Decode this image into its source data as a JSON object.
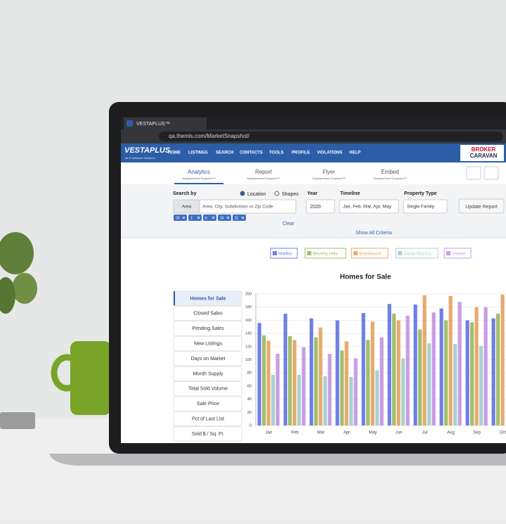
{
  "browser": {
    "tab_title": "VESTAPLUS™",
    "url": "qa.themls.com/MarketSnapshot/"
  },
  "header": {
    "logo": "VESTAPLUS",
    "logo_tagline": "MLS Software Solutions",
    "nav": [
      "HOME",
      "LISTINGS",
      "SEARCH",
      "CONTACTS",
      "TOOLS",
      "PROFILE",
      "VIOLATIONS",
      "HELP"
    ],
    "partner_logo": [
      "BROKER",
      "CARAVAN"
    ]
  },
  "tabs": [
    {
      "label": "Analytics",
      "sub": "Neighborhood Snapshot™"
    },
    {
      "label": "Report",
      "sub": "Neighborhood Snapshot™"
    },
    {
      "label": "Flyer",
      "sub": "Neighborhood Snapshot™"
    },
    {
      "label": "Embed",
      "sub": "Neighborhood Snapshot™"
    }
  ],
  "search": {
    "search_by": "Search by",
    "options": [
      "Location",
      "Shapes"
    ],
    "area_label": "Area:",
    "area_placeholder": "Area, City, Subdivision or Zip Code",
    "chips": [
      "33",
      "1",
      "6",
      "14",
      "11"
    ],
    "clear": "Clear",
    "year_label": "Year",
    "year": "2020",
    "timeline_label": "Timeline",
    "timeline": "Jan, Feb, Mar, Apr, May",
    "property_label": "Property Type",
    "property": "Single Family",
    "update": "Update Report",
    "show_all": "Show All Criteria"
  },
  "metrics": [
    "Homes for Sale",
    "Closed Sales",
    "Pending Sales",
    "New Listings",
    "Days on Market",
    "Month Supply",
    "Total Sold Volume",
    "Sale Price",
    "Pct of Last List",
    "Sold $ / Sq. Ft."
  ],
  "chart_data": {
    "type": "bar",
    "title": "Homes for Sale",
    "categories": [
      "Jan",
      "Feb",
      "Mar",
      "Apr",
      "May",
      "Jun",
      "Jul",
      "Aug",
      "Sep",
      "Oct"
    ],
    "series": [
      {
        "name": "Malibu",
        "color": "#6f7fe3",
        "values": [
          156,
          170,
          163,
          160,
          171,
          185,
          184,
          178,
          160,
          163
        ]
      },
      {
        "name": "Beverly Hills",
        "color": "#a2bf6c",
        "values": [
          137,
          136,
          134,
          114,
          130,
          170,
          146,
          160,
          157,
          170
        ]
      },
      {
        "name": "Brentwood",
        "color": "#e6aa6c",
        "values": [
          129,
          130,
          149,
          128,
          158,
          160,
          198,
          197,
          180,
          199
        ]
      },
      {
        "name": "Santa Monica",
        "color": "#a9d1d0",
        "values": [
          77,
          77,
          75,
          74,
          84,
          102,
          125,
          124,
          121,
          null
        ]
      },
      {
        "name": "Venice",
        "color": "#c79de2",
        "values": [
          109,
          119,
          109,
          102,
          134,
          167,
          172,
          188,
          180,
          null
        ]
      }
    ],
    "ylim": [
      0,
      200
    ],
    "yticks": [
      0,
      20,
      40,
      60,
      80,
      100,
      120,
      140,
      160,
      180,
      200
    ],
    "grid": true
  }
}
